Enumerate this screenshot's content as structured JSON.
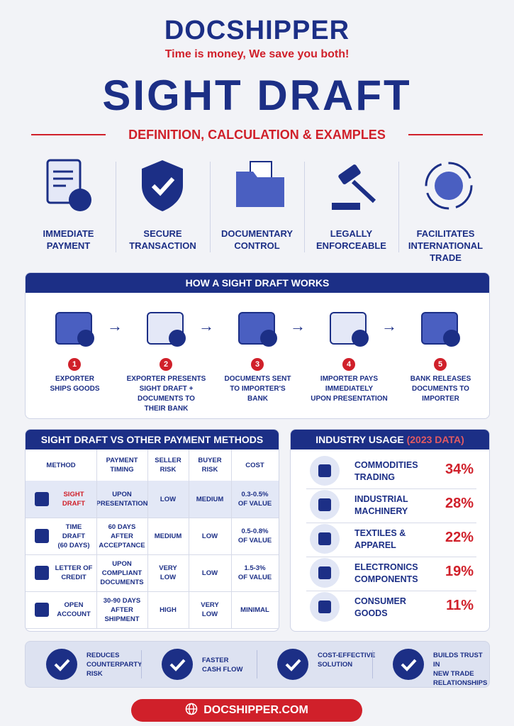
{
  "header": {
    "logo": "DOCSHIPPER",
    "tagline": "Time is money, We save you both!",
    "title": "SIGHT DRAFT",
    "subtitle": "DEFINITION, CALCULATION & EXAMPLES"
  },
  "features": [
    "IMMEDIATE\nPAYMENT",
    "SECURE\nTRANSACTION",
    "DOCUMENTARY\nCONTROL",
    "LEGALLY\nENFORCEABLE",
    "FACILITATES\nINTERNATIONAL\nTRADE"
  ],
  "steps": {
    "title": "HOW A SIGHT DRAFT WORKS",
    "items": [
      {
        "number": "1",
        "label": "EXPORTER\nSHIPS GOODS"
      },
      {
        "number": "2",
        "label": "EXPORTER PRESENTS\nSIGHT DRAFT +\nDOCUMENTS TO\nTHEIR BANK"
      },
      {
        "number": "3",
        "label": "DOCUMENTS SENT\nTO IMPORTER'S\nBANK"
      },
      {
        "number": "4",
        "label": "IMPORTER PAYS\nIMMEDIATELY\nUPON PRESENTATION"
      },
      {
        "number": "5",
        "label": "BANK RELEASES\nDOCUMENTS TO\nIMPORTER"
      }
    ]
  },
  "comparison": {
    "title": "SIGHT DRAFT VS OTHER PAYMENT METHODS",
    "columns": [
      "METHOD",
      "PAYMENT\nTIMING",
      "SELLER\nRISK",
      "BUYER\nRISK",
      "COST"
    ],
    "rows": [
      [
        "SIGHT\nDRAFT",
        "UPON\nPRESENTATION",
        "LOW",
        "MEDIUM",
        "0.3-0.5%\nOF VALUE"
      ],
      [
        "TIME\nDRAFT\n(60 DAYS)",
        "60 DAYS\nAFTER\nACCEPTANCE",
        "MEDIUM",
        "LOW",
        "0.5-0.8%\nOF VALUE"
      ],
      [
        "LETTER OF\nCREDIT",
        "UPON\nCOMPLIANT\nDOCUMENTS",
        "VERY\nLOW",
        "LOW",
        "1.5-3%\nOF VALUE"
      ],
      [
        "OPEN\nACCOUNT",
        "30-90 DAYS\nAFTER\nSHIPMENT",
        "HIGH",
        "VERY\nLOW",
        "MINIMAL"
      ]
    ]
  },
  "usage": {
    "title": "INDUSTRY USAGE",
    "title_note": "(2023 DATA)",
    "items": [
      {
        "label": "COMMODITIES\nTRADING",
        "share": "34%"
      },
      {
        "label": "INDUSTRIAL\nMACHINERY",
        "share": "28%"
      },
      {
        "label": "TEXTILES &\nAPPAREL",
        "share": "22%"
      },
      {
        "label": "ELECTRONICS\nCOMPONENTS",
        "share": "19%"
      },
      {
        "label": "CONSUMER\nGOODS",
        "share": "11%"
      }
    ]
  },
  "benefits": [
    "REDUCES\nCOUNTERPARTY\nRISK",
    "FASTER\nCASH FLOW",
    "COST-EFFECTIVE\nSOLUTION",
    "BUILDS TRUST IN\nNEW TRADE\nRELATIONSHIPS"
  ],
  "footer": {
    "link": "DOCSHIPPER.COM"
  }
}
